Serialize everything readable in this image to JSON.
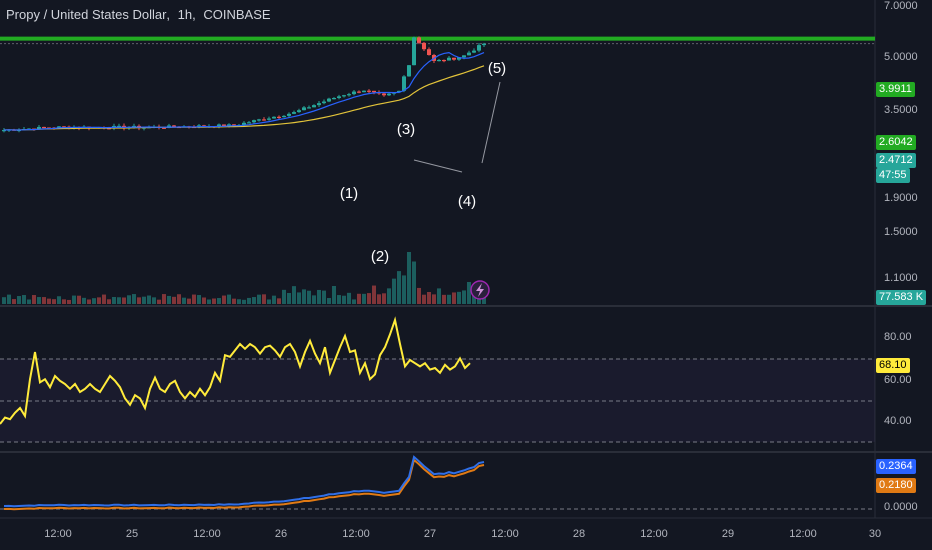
{
  "header": {
    "symbol": "Propy / United States Dollar",
    "interval": "1h",
    "exchange": "COINBASE",
    "sep1": ",",
    "sep2": ","
  },
  "colors": {
    "background": "#131722",
    "up": "#26a69a",
    "down": "#ef5350",
    "resistance": "#22ab22",
    "ma_slow": "#e2c33a",
    "ma_fast": "#2962ff",
    "rsi": "#ffeb3b",
    "ind_blue": "#2f6fe8",
    "ind_orange": "#e07a14"
  },
  "price_axis": {
    "ticks": [
      "7.0000",
      "5.0000",
      "3.5000",
      "1.9000",
      "1.5000",
      "1.1000"
    ],
    "tags": {
      "resistance_upper": "3.9911",
      "resistance_lower": "2.6042",
      "last_price": "2.4712",
      "countdown": "47:55",
      "volume": "77.583 K"
    }
  },
  "rsi_axis": {
    "ticks": [
      "80.00",
      "60.00",
      "40.00"
    ],
    "tag": "68.10"
  },
  "ind_axis": {
    "ticks": [
      "0.0000"
    ],
    "tags": [
      "0.2364",
      "0.2180"
    ]
  },
  "time_axis": {
    "labels": [
      "12:00",
      "25",
      "12:00",
      "26",
      "12:00",
      "27",
      "12:00",
      "28",
      "12:00",
      "29",
      "12:00",
      "30"
    ]
  },
  "annotations": {
    "waves": [
      "(1)",
      "(2)",
      "(3)",
      "(4)",
      "(5)"
    ]
  },
  "icons": {
    "flash": "lightning-icon"
  },
  "chart_data": {
    "type": "candlestick",
    "title": "Propy / United States Dollar, 1h, COINBASE",
    "price_scale": "log",
    "ylim": [
      0.98,
      7.2
    ],
    "horizontal_levels": [
      3.9911,
      2.6042
    ],
    "last_price": 2.4712,
    "rsi": {
      "last": 68.1,
      "levels": [
        70,
        50,
        30
      ],
      "values": [
        30,
        34,
        33,
        37,
        40,
        35,
        58,
        75,
        56,
        58,
        53,
        60,
        57,
        55,
        52,
        55,
        50,
        52,
        55,
        52,
        50,
        55,
        60,
        57,
        53,
        46,
        42,
        48,
        46,
        40,
        52,
        59,
        52,
        50,
        55,
        57,
        50,
        46,
        50,
        47,
        52,
        48,
        53,
        62,
        57,
        73,
        72,
        76,
        80,
        77,
        80,
        78,
        74,
        78,
        79,
        76,
        72,
        78,
        80,
        75,
        66,
        75,
        82,
        74,
        68,
        78,
        62,
        70,
        78,
        85,
        75,
        76,
        62,
        68,
        58,
        61,
        73,
        78,
        86,
        95,
        80,
        66,
        70,
        68,
        66,
        68,
        64,
        65,
        62,
        67,
        64,
        66,
        71,
        65,
        68
      ]
    },
    "oscillator": {
      "series": [
        {
          "color": "#2f6fe8",
          "last": 0.2364
        },
        {
          "color": "#e07a14",
          "last": 0.218
        }
      ]
    }
  }
}
